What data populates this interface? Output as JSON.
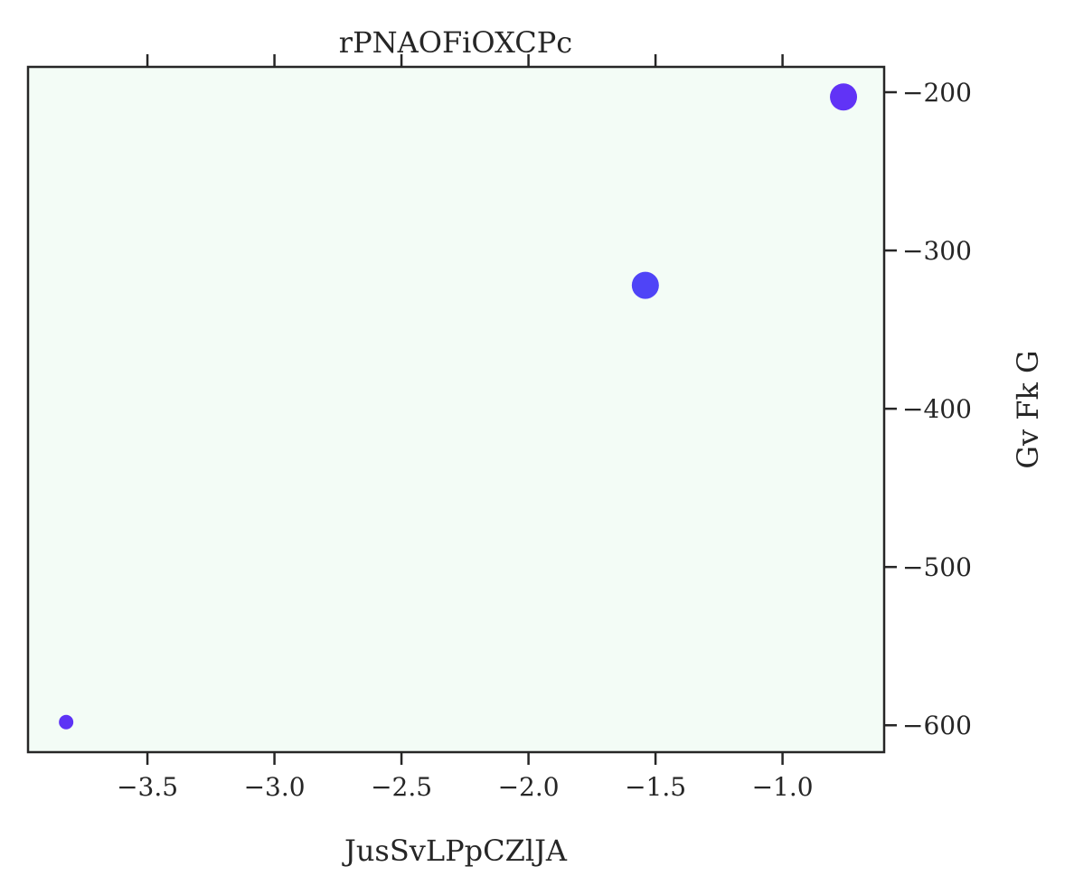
{
  "chart_data": {
    "type": "scatter",
    "title": "rPNAOFiOXCPc",
    "xlabel": "JusSvLPpCZlJA",
    "ylabel": "Gv Fk G",
    "xlim": [
      -3.97,
      -0.6
    ],
    "ylim": [
      -617,
      -184
    ],
    "x_ticks": [
      -3.5,
      -3.0,
      -2.5,
      -2.0,
      -1.5,
      -1.0
    ],
    "x_tick_labels": [
      "−3.5",
      "−3.0",
      "−2.5",
      "−2.0",
      "−1.5",
      "−1.0"
    ],
    "y_ticks": [
      -200,
      -300,
      -400,
      -500,
      -600
    ],
    "y_tick_labels": [
      "−200",
      "−300",
      "−400",
      "−500",
      "−600"
    ],
    "y_axis_position": "right",
    "grid": false,
    "background_color": "#f3fcf6",
    "points": [
      {
        "x": -3.82,
        "y": -598,
        "size": "small",
        "color": "#5d33f5"
      },
      {
        "x": -1.54,
        "y": -322,
        "size": "large",
        "color": "#4f44f7"
      },
      {
        "x": -0.76,
        "y": -203,
        "size": "large",
        "color": "#6133f6"
      }
    ]
  }
}
